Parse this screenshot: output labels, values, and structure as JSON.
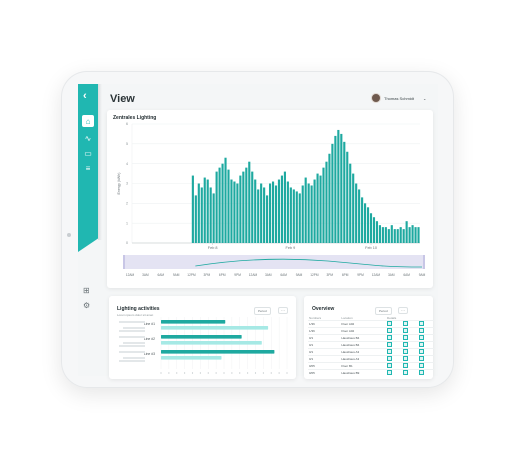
{
  "app": {
    "view_title": "View",
    "user_name": "Thomas Schmidt",
    "user_menu": "⌄"
  },
  "sidebar": {
    "logo": "‹",
    "items": [
      {
        "icon": "home-icon",
        "glyph": "⌂"
      },
      {
        "icon": "trend-icon",
        "glyph": "∿"
      },
      {
        "icon": "monitor-icon",
        "glyph": "▭"
      },
      {
        "icon": "settings-sliders-icon",
        "glyph": "≡"
      }
    ],
    "bottom_items": [
      {
        "icon": "plus-square-icon",
        "glyph": "⊞"
      },
      {
        "icon": "settings-icon",
        "glyph": "⚙"
      }
    ]
  },
  "main_chart_card": {
    "title": "Zentrales Lighting"
  },
  "activities_card": {
    "title": "Lighting activities",
    "subtitle": "Lorem ipsum dolor sit amet",
    "period": "Period",
    "row_labels": [
      "Line #1",
      "Line #2",
      "Line #3"
    ]
  },
  "overview_card": {
    "title": "Overview",
    "period": "Period",
    "columns": [
      "Numbers",
      "Location",
      "Details"
    ],
    "rows": [
      {
        "number": "1/36",
        "location": "Floor A02"
      },
      {
        "number": "1/36",
        "location": "Floor A02"
      },
      {
        "number": "0/1",
        "location": "Haushaus B4"
      },
      {
        "number": "0/1",
        "location": "Haushaus B4"
      },
      {
        "number": "0/1",
        "location": "Haushaus A3"
      },
      {
        "number": "0/1",
        "location": "Haushaus A3"
      },
      {
        "number": "0/05",
        "location": "Floor B1"
      },
      {
        "number": "0/05",
        "location": "Haushaus B9"
      }
    ]
  },
  "colors": {
    "accent": "#20b7b1",
    "bar_dark": "#1ea9a0",
    "bar_light": "#a6e9e5",
    "range_bg": "#e4e3f3"
  },
  "chart_data": [
    {
      "type": "bar",
      "title": "Zentrales Lighting",
      "ylabel": "Energy (kWh)",
      "ylim": [
        0,
        6
      ],
      "yticks": [
        0,
        1,
        2,
        3,
        4,
        5,
        6
      ],
      "date_labels": [
        "Feb 8",
        "Feb 9",
        "Feb 10"
      ],
      "time_labels": [
        "12AM",
        "3AM",
        "6AM",
        "9AM",
        "12PM",
        "3PM",
        "6PM",
        "9PM",
        "12AM",
        "3AM",
        "6AM",
        "9AM",
        "12PM",
        "3PM",
        "6PM",
        "9PM",
        "12AM",
        "3AM",
        "6AM",
        "9AM"
      ],
      "values": [
        0,
        0,
        0,
        0,
        0,
        0,
        0,
        0,
        0,
        0,
        0,
        0,
        0,
        0,
        0,
        0,
        0,
        0,
        0,
        0,
        3.4,
        2.4,
        3.0,
        2.8,
        3.3,
        3.2,
        2.8,
        2.5,
        3.6,
        3.8,
        4.0,
        4.3,
        3.7,
        3.2,
        3.1,
        3.0,
        3.4,
        3.6,
        3.8,
        4.1,
        3.6,
        3.2,
        2.7,
        3.0,
        2.8,
        2.4,
        3.0,
        3.1,
        2.9,
        3.2,
        3.4,
        3.6,
        3.1,
        2.8,
        2.7,
        2.6,
        2.5,
        2.9,
        3.3,
        3.0,
        2.9,
        3.2,
        3.5,
        3.4,
        3.8,
        4.1,
        4.5,
        5.0,
        5.4,
        5.7,
        5.5,
        5.1,
        4.6,
        4.0,
        3.5,
        3.0,
        2.7,
        2.3,
        2.0,
        1.8,
        1.5,
        1.3,
        1.1,
        0.9,
        0.8,
        0.8,
        0.7,
        0.9,
        0.7,
        0.7,
        0.8,
        0.7,
        1.1,
        0.8,
        0.9,
        0.8,
        0.8
      ]
    },
    {
      "type": "bar",
      "title": "Lighting activities",
      "categories": [
        "Line #1",
        "Line #2",
        "Line #3"
      ],
      "series": [
        {
          "values": [
            0.51,
            0.64,
            0.9
          ]
        },
        {
          "values": [
            0.85,
            0.8,
            0.48
          ]
        }
      ]
    }
  ]
}
